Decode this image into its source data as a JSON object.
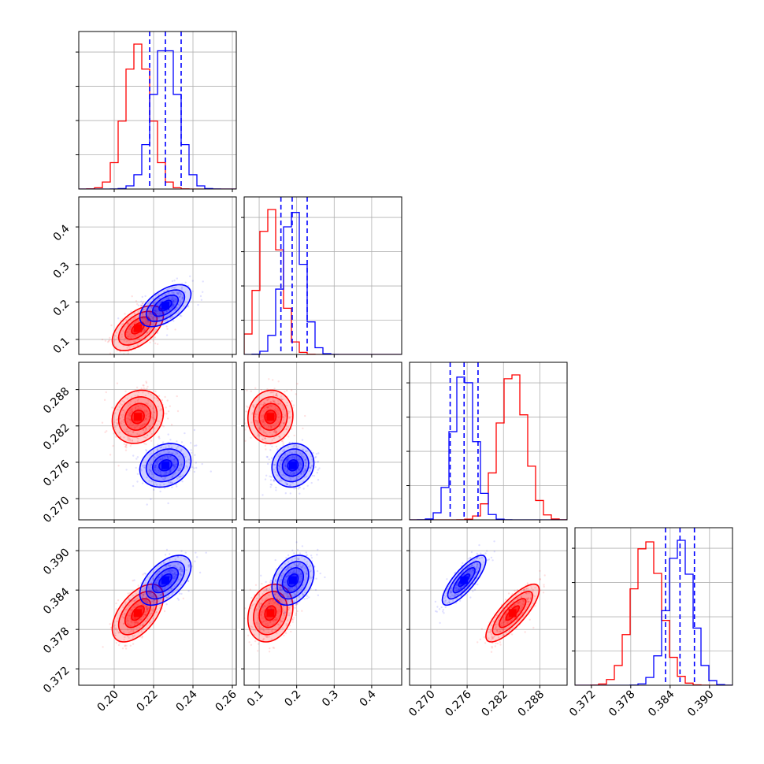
{
  "chart_data": {
    "type": "corner",
    "title": "",
    "params": [
      {
        "ticks": [
          0.2,
          0.22,
          0.24,
          0.26
        ],
        "tick_labels": [
          "0.20",
          "0.22",
          "0.24",
          "0.26"
        ],
        "range": [
          0.182,
          0.262
        ]
      },
      {
        "ticks": [
          0.1,
          0.2,
          0.3,
          0.4
        ],
        "tick_labels": [
          "0.1",
          "0.2",
          "0.3",
          "0.4"
        ],
        "range": [
          0.06,
          0.48
        ]
      },
      {
        "ticks": [
          0.27,
          0.276,
          0.282,
          0.288
        ],
        "tick_labels": [
          "0.270",
          "0.276",
          "0.282",
          "0.288"
        ],
        "range": [
          0.2665,
          0.2925
        ]
      },
      {
        "ticks": [
          0.372,
          0.378,
          0.384,
          0.39
        ],
        "tick_labels": [
          "0.372",
          "0.378",
          "0.384",
          "0.390"
        ],
        "range": [
          0.3695,
          0.3935
        ]
      }
    ],
    "series": [
      {
        "color": "#ff0000",
        "mean": [
          0.212,
          0.13,
          0.2835,
          0.3805
        ],
        "sd": [
          0.0065,
          0.03,
          0.0022,
          0.0022
        ],
        "correlations": [
          [
            0,
            1,
            0.55
          ],
          [
            0,
            2,
            0.15
          ],
          [
            0,
            3,
            0.55
          ],
          [
            1,
            2,
            0.05
          ],
          [
            1,
            3,
            0.2
          ],
          [
            2,
            3,
            0.8
          ]
        ],
        "quantiles_shown": false
      },
      {
        "color": "#0000ff",
        "mean": [
          0.226,
          0.19,
          0.2755,
          0.3855
        ],
        "sd": [
          0.0065,
          0.028,
          0.0018,
          0.0019
        ],
        "correlations": [
          [
            0,
            1,
            0.55
          ],
          [
            0,
            2,
            0.2
          ],
          [
            0,
            3,
            0.55
          ],
          [
            1,
            2,
            0.1
          ],
          [
            1,
            3,
            0.3
          ],
          [
            2,
            3,
            0.8
          ]
        ],
        "quantiles_shown": true,
        "quantiles": [
          [
            0.218,
            0.226,
            0.234
          ],
          [
            0.158,
            0.188,
            0.228
          ],
          [
            0.2732,
            0.2755,
            0.2778
          ],
          [
            0.3833,
            0.3855,
            0.3877
          ]
        ]
      }
    ],
    "grid": true
  }
}
